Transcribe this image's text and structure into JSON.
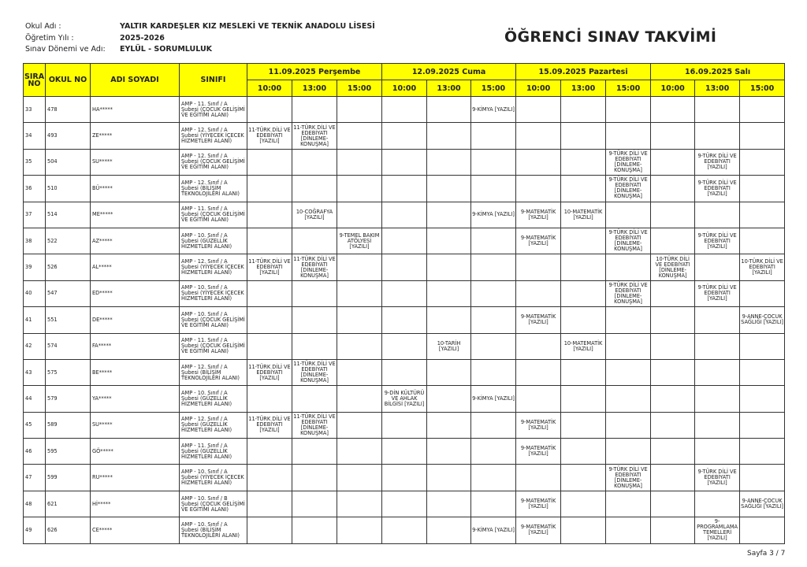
{
  "header": {
    "school_label": "Okul Adı :",
    "school_value": "YALTIR KARDEŞLER KIZ MESLEKİ VE TEKNİK ANADOLU LİSESİ",
    "year_label": "Öğretim Yılı :",
    "year_value": "2025-2026",
    "period_label": "Sınav Dönemi ve Adı:",
    "period_value": "EYLÜL - SORUMLULUK",
    "title": "ÖĞRENCİ SINAV TAKVİMİ"
  },
  "table": {
    "columns": {
      "sira": "SIRA NO",
      "okul_no": "OKUL NO",
      "name": "ADI SOYADI",
      "class": "SINIFI"
    },
    "header_color": "#ffff00",
    "days": [
      {
        "label": "11.09.2025 Perşembe",
        "times": [
          "10:00",
          "13:00",
          "15:00"
        ]
      },
      {
        "label": "12.09.2025 Cuma",
        "times": [
          "10:00",
          "13:00",
          "15:00"
        ]
      },
      {
        "label": "15.09.2025 Pazartesi",
        "times": [
          "10:00",
          "13:00",
          "15:00"
        ]
      },
      {
        "label": "16.09.2025 Salı",
        "times": [
          "10:00",
          "13:00",
          "15:00"
        ]
      }
    ],
    "rows": [
      {
        "sira": "33",
        "no": "478",
        "name": "HA*****",
        "class": "AMP - 11. Sınıf / A Şubesi (ÇOCUK GELİŞİMİ VE EĞİTİMİ ALANI)",
        "cells": [
          "",
          "",
          "",
          "",
          "",
          "9-KİMYA [YAZILI]",
          "",
          "",
          "",
          "",
          "",
          ""
        ]
      },
      {
        "sira": "34",
        "no": "493",
        "name": "ZE*****",
        "class": "AMP - 12. Sınıf / A Şubesi (YİYECEK İÇECEK HİZMETLERİ ALANI)",
        "cells": [
          "11-TÜRK DİLİ VE EDEBİYATI [YAZILI]",
          "11-TÜRK DİLİ VE EDEBİYATI [DİNLEME-KONUŞMA]",
          "",
          "",
          "",
          "",
          "",
          "",
          "",
          "",
          "",
          ""
        ]
      },
      {
        "sira": "35",
        "no": "504",
        "name": "SU*****",
        "class": "AMP - 12. Sınıf / A Şubesi (ÇOCUK GELİŞİMİ VE EĞİTİMİ ALANI)",
        "cells": [
          "",
          "",
          "",
          "",
          "",
          "",
          "",
          "",
          "9-TÜRK DİLİ VE EDEBİYATI [DİNLEME-KONUŞMA]",
          "",
          "9-TÜRK DİLİ VE EDEBİYATI [YAZILI]",
          ""
        ]
      },
      {
        "sira": "36",
        "no": "510",
        "name": "BÜ*****",
        "class": "AMP - 12. Sınıf / A Şubesi (BİLİŞİM TEKNOLOJİLERİ ALANI)",
        "cells": [
          "",
          "",
          "",
          "",
          "",
          "",
          "",
          "",
          "9-TÜRK DİLİ VE EDEBİYATI [DİNLEME-KONUŞMA]",
          "",
          "9-TÜRK DİLİ VE EDEBİYATI [YAZILI]",
          ""
        ]
      },
      {
        "sira": "37",
        "no": "514",
        "name": "ME*****",
        "class": "AMP - 11. Sınıf / A Şubesi (ÇOCUK GELİŞİMİ VE EĞİTİMİ ALANI)",
        "cells": [
          "",
          "10-COĞRAFYA [YAZILI]",
          "",
          "",
          "",
          "9-KİMYA [YAZILI]",
          "9-MATEMATİK [YAZILI]",
          "10-MATEMATİK [YAZILI]",
          "",
          "",
          "",
          ""
        ]
      },
      {
        "sira": "38",
        "no": "522",
        "name": "AZ*****",
        "class": "AMP - 10. Sınıf / A Şubesi (GÜZELLİK HİZMETLERİ ALANI)",
        "cells": [
          "",
          "",
          "9-TEMEL BAKIM ATÖLYESİ [YAZILI]",
          "",
          "",
          "",
          "9-MATEMATİK [YAZILI]",
          "",
          "9-TÜRK DİLİ VE EDEBİYATI [DİNLEME-KONUŞMA]",
          "",
          "9-TÜRK DİLİ VE EDEBİYATI [YAZILI]",
          ""
        ]
      },
      {
        "sira": "39",
        "no": "526",
        "name": "AL*****",
        "class": "AMP - 12. Sınıf / A Şubesi (YİYECEK İÇECEK HİZMETLERİ ALANI)",
        "cells": [
          "11-TÜRK DİLİ VE EDEBİYATI [YAZILI]",
          "11-TÜRK DİLİ VE EDEBİYATI [DİNLEME-KONUŞMA]",
          "",
          "",
          "",
          "",
          "",
          "",
          "",
          "10-TÜRK DİLİ VE EDEBİYATI [DİNLEME-KONUŞMA]",
          "",
          "10-TÜRK DİLİ VE EDEBİYATI [YAZILI]"
        ]
      },
      {
        "sira": "40",
        "no": "547",
        "name": "ED*****",
        "class": "AMP - 10. Sınıf / A Şubesi (YİYECEK İÇECEK HİZMETLERİ ALANI)",
        "cells": [
          "",
          "",
          "",
          "",
          "",
          "",
          "",
          "",
          "9-TÜRK DİLİ VE EDEBİYATI [DİNLEME-KONUŞMA]",
          "",
          "9-TÜRK DİLİ VE EDEBİYATI [YAZILI]",
          ""
        ]
      },
      {
        "sira": "41",
        "no": "551",
        "name": "DE*****",
        "class": "AMP - 10. Sınıf / A Şubesi (ÇOCUK GELİŞİMİ VE EĞİTİMİ ALANI)",
        "cells": [
          "",
          "",
          "",
          "",
          "",
          "",
          "9-MATEMATİK [YAZILI]",
          "",
          "",
          "",
          "",
          "9-ANNE-ÇOCUK SAĞLIĞI [YAZILI]"
        ]
      },
      {
        "sira": "42",
        "no": "574",
        "name": "FA*****",
        "class": "AMP - 11. Sınıf / A Şubesi (ÇOCUK GELİŞİMİ VE EĞİTİMİ ALANI)",
        "cells": [
          "",
          "",
          "",
          "",
          "10-TARİH [YAZILI]",
          "",
          "",
          "10-MATEMATİK [YAZILI]",
          "",
          "",
          "",
          ""
        ]
      },
      {
        "sira": "43",
        "no": "575",
        "name": "BE*****",
        "class": "AMP - 12. Sınıf / A Şubesi (BİLİŞİM TEKNOLOJİLERİ ALANI)",
        "cells": [
          "11-TÜRK DİLİ VE EDEBİYATI [YAZILI]",
          "11-TÜRK DİLİ VE EDEBİYATI [DİNLEME-KONUŞMA]",
          "",
          "",
          "",
          "",
          "",
          "",
          "",
          "",
          "",
          ""
        ]
      },
      {
        "sira": "44",
        "no": "579",
        "name": "YA*****",
        "class": "AMP - 10. Sınıf / A Şubesi (GÜZELLİK HİZMETLERİ ALANI)",
        "cells": [
          "",
          "",
          "",
          "9-DİN KÜLTÜRÜ VE AHLAK BİLGİSİ [YAZILI]",
          "",
          "9-KİMYA [YAZILI]",
          "",
          "",
          "",
          "",
          "",
          ""
        ]
      },
      {
        "sira": "45",
        "no": "589",
        "name": "SU*****",
        "class": "AMP - 12. Sınıf / A Şubesi (GÜZELLİK HİZMETLERİ ALANI)",
        "cells": [
          "11-TÜRK DİLİ VE EDEBİYATI [YAZILI]",
          "11-TÜRK DİLİ VE EDEBİYATI [DİNLEME-KONUŞMA]",
          "",
          "",
          "",
          "",
          "9-MATEMATİK [YAZILI]",
          "",
          "",
          "",
          "",
          ""
        ]
      },
      {
        "sira": "46",
        "no": "595",
        "name": "GÖ*****",
        "class": "AMP - 11. Sınıf / A Şubesi (GÜZELLİK HİZMETLERİ ALANI)",
        "cells": [
          "",
          "",
          "",
          "",
          "",
          "",
          "9-MATEMATİK [YAZILI]",
          "",
          "",
          "",
          "",
          ""
        ]
      },
      {
        "sira": "47",
        "no": "599",
        "name": "RU*****",
        "class": "AMP - 10. Sınıf / A Şubesi (YİYECEK İÇECEK HİZMETLERİ ALANI)",
        "cells": [
          "",
          "",
          "",
          "",
          "",
          "",
          "",
          "",
          "9-TÜRK DİLİ VE EDEBİYATI [DİNLEME-KONUŞMA]",
          "",
          "9-TÜRK DİLİ VE EDEBİYATI [YAZILI]",
          ""
        ]
      },
      {
        "sira": "48",
        "no": "621",
        "name": "Hİ*****",
        "class": "AMP - 10. Sınıf / B Şubesi (ÇOCUK GELİŞİMİ VE EĞİTİMİ ALANI)",
        "cells": [
          "",
          "",
          "",
          "",
          "",
          "",
          "9-MATEMATİK [YAZILI]",
          "",
          "",
          "",
          "",
          "9-ANNE-ÇOCUK SAĞLIĞI [YAZILI]"
        ]
      },
      {
        "sira": "49",
        "no": "626",
        "name": "CE*****",
        "class": "AMP - 10. Sınıf / A Şubesi (BİLİŞİM TEKNOLOJİLERİ ALANI)",
        "cells": [
          "",
          "",
          "",
          "",
          "",
          "9-KİMYA [YAZILI]",
          "9-MATEMATİK [YAZILI]",
          "",
          "",
          "",
          "9-PROGRAMLAMA TEMELLERİ [YAZILI]",
          ""
        ]
      }
    ]
  },
  "footer": {
    "page": "Sayfa 3 / 7"
  }
}
